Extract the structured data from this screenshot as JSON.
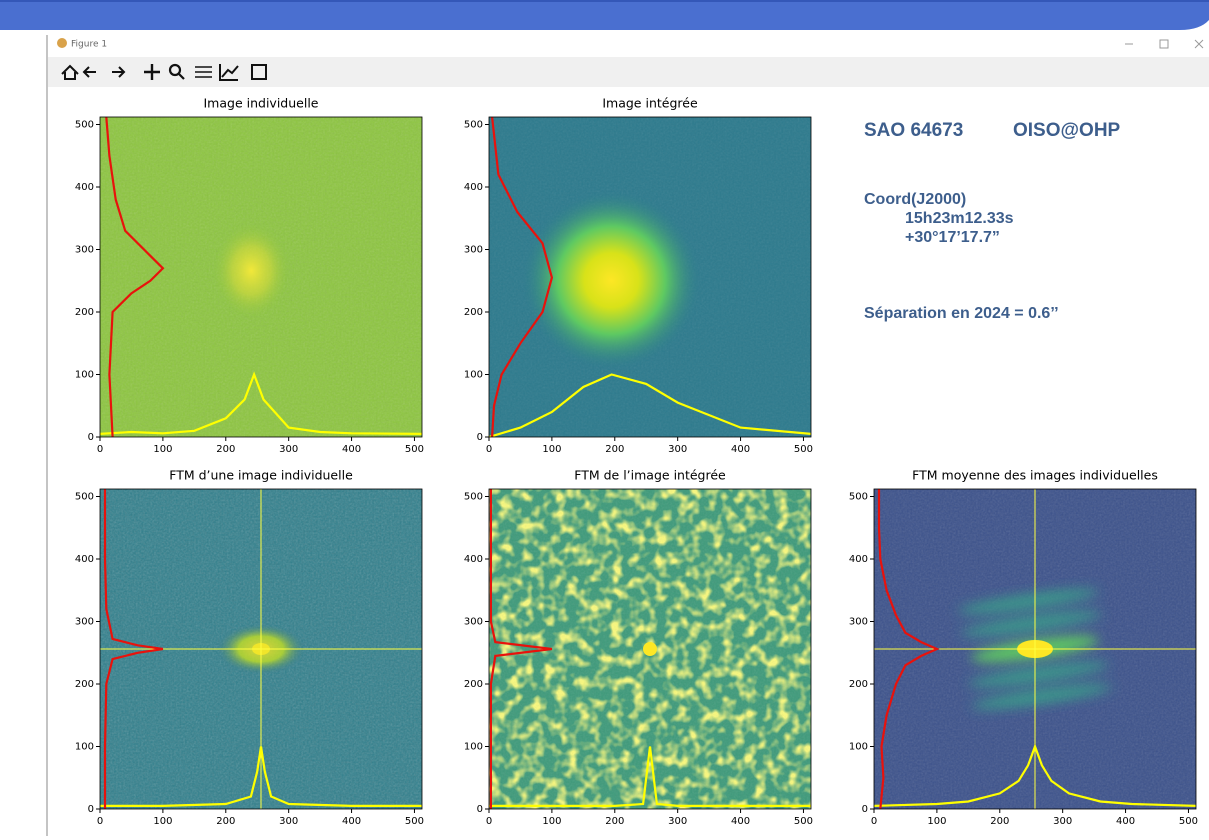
{
  "window": {
    "title": "Figure 1"
  },
  "info": {
    "object": "SAO 64673",
    "observatory": "OISO@OHP",
    "coord_label": "Coord(J2000)",
    "ra": "15h23m12.33s",
    "dec": "+30°17’17.7”",
    "separation": "Séparation en 2024 = 0.6’’"
  },
  "panels": [
    {
      "title": "Image individuelle",
      "xlim": [
        0,
        512
      ],
      "ylim": [
        0,
        512
      ],
      "xticks": [
        0,
        100,
        200,
        300,
        400,
        500
      ],
      "yticks": [
        0,
        100,
        200,
        300,
        400,
        500
      ],
      "profiles": [
        {
          "color": "#ffff00",
          "x": [
            0,
            50,
            100,
            150,
            200,
            230,
            245,
            260,
            300,
            350,
            400,
            512
          ],
          "y": [
            5,
            8,
            6,
            10,
            30,
            60,
            100,
            60,
            15,
            8,
            6,
            5
          ]
        },
        {
          "color": "#e8120c",
          "x": [
            20,
            15,
            20,
            50,
            80,
            100,
            80,
            40,
            25,
            15,
            10
          ],
          "y": [
            0,
            100,
            200,
            230,
            250,
            270,
            290,
            330,
            380,
            450,
            512
          ]
        }
      ]
    },
    {
      "title": "Image intégrée",
      "xlim": [
        0,
        512
      ],
      "ylim": [
        0,
        512
      ],
      "xticks": [
        0,
        100,
        200,
        300,
        400,
        500
      ],
      "yticks": [
        0,
        100,
        200,
        300,
        400,
        500
      ],
      "profiles": [
        {
          "color": "#ffff00",
          "x": [
            0,
            50,
            100,
            150,
            195,
            250,
            300,
            400,
            512
          ],
          "y": [
            0,
            15,
            40,
            80,
            100,
            85,
            55,
            15,
            5
          ]
        },
        {
          "color": "#e8120c",
          "x": [
            5,
            8,
            20,
            50,
            85,
            100,
            85,
            45,
            15,
            5
          ],
          "y": [
            0,
            50,
            100,
            150,
            200,
            255,
            310,
            360,
            420,
            512
          ]
        }
      ]
    },
    {
      "title": "FTM d’une image individuelle",
      "xlim": [
        0,
        512
      ],
      "ylim": [
        0,
        512
      ],
      "xticks": [
        0,
        100,
        200,
        300,
        400,
        500
      ],
      "yticks": [
        0,
        100,
        200,
        300,
        400,
        500
      ],
      "crosshair": 256,
      "profiles": [
        {
          "color": "#ffff00",
          "x": [
            0,
            100,
            200,
            240,
            250,
            256,
            262,
            272,
            300,
            400,
            512
          ],
          "y": [
            5,
            5,
            8,
            20,
            60,
            100,
            60,
            20,
            8,
            5,
            5
          ]
        },
        {
          "color": "#e8120c",
          "x": [
            8,
            8,
            10,
            20,
            60,
            100,
            60,
            20,
            10,
            8,
            8
          ],
          "y": [
            0,
            100,
            200,
            240,
            250,
            256,
            262,
            272,
            320,
            400,
            512
          ]
        }
      ]
    },
    {
      "title": "FTM de l’image intégrée",
      "xlim": [
        0,
        512
      ],
      "ylim": [
        0,
        512
      ],
      "xticks": [
        0,
        100,
        200,
        300,
        400,
        500
      ],
      "yticks": [
        0,
        100,
        200,
        300,
        400,
        500
      ],
      "profiles": [
        {
          "color": "#ffff00",
          "x": [
            0,
            100,
            200,
            245,
            256,
            267,
            300,
            400,
            512
          ],
          "y": [
            5,
            5,
            5,
            8,
            100,
            8,
            5,
            5,
            5
          ]
        },
        {
          "color": "#e8120c",
          "x": [
            3,
            3,
            3,
            10,
            100,
            10,
            3,
            3,
            3
          ],
          "y": [
            0,
            100,
            200,
            245,
            256,
            267,
            300,
            400,
            512
          ]
        }
      ]
    },
    {
      "title": "FTM moyenne des images individuelles",
      "xlim": [
        0,
        512
      ],
      "ylim": [
        0,
        512
      ],
      "xticks": [
        0,
        100,
        200,
        300,
        400,
        500
      ],
      "yticks": [
        0,
        100,
        200,
        300,
        400,
        500
      ],
      "crosshair": 256,
      "profiles": [
        {
          "color": "#ffff00",
          "x": [
            0,
            100,
            150,
            200,
            230,
            245,
            256,
            267,
            282,
            310,
            360,
            410,
            512
          ],
          "y": [
            5,
            8,
            12,
            25,
            45,
            70,
            100,
            70,
            45,
            25,
            12,
            8,
            5
          ]
        },
        {
          "color": "#e8120c",
          "x": [
            10,
            15,
            12,
            20,
            35,
            50,
            75,
            100,
            75,
            50,
            35,
            20,
            10,
            8,
            8
          ],
          "y": [
            0,
            50,
            100,
            150,
            200,
            230,
            245,
            256,
            267,
            282,
            310,
            350,
            400,
            450,
            512
          ]
        }
      ]
    }
  ]
}
